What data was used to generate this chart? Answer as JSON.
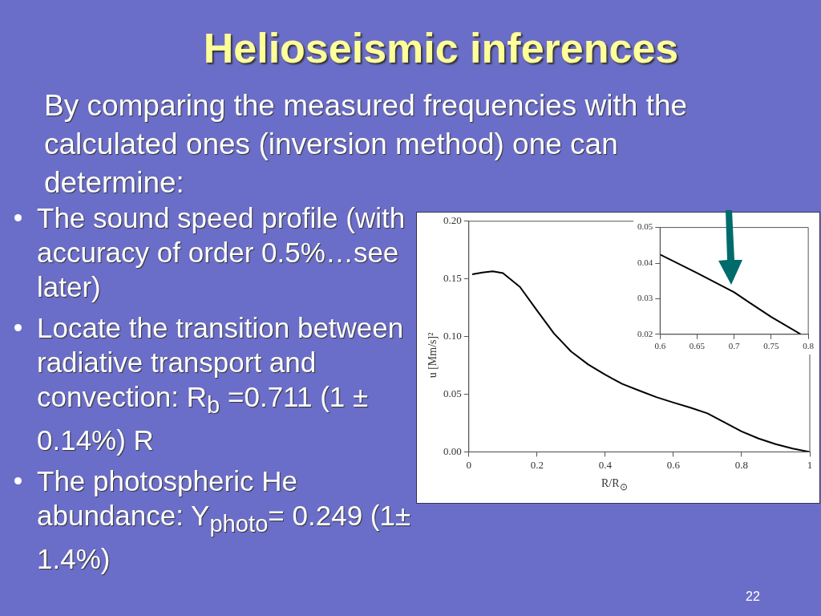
{
  "chart_data": [
    {
      "type": "line",
      "title": "Helioseismic inferences",
      "subtitle": "By comparing the measured frequencies with the calculated ones  (inversion method) one can determine:",
      "annotations": [
        "The sound speed profile (with accuracy of order 0.5%…see later)",
        "Locate the transition between radiative transport and convection: R$_{b}$ =0.711  (1 ± 0.14%) R",
        "The photospheric He abundance: Y$_{photo}$= 0.249 (1± 1.4%)",
        "22"
      ],
      "xlabel": "R/R$_{⊙}$",
      "ylabel": "u [Mm/s]²",
      "x": [
        0.01,
        0.04,
        0.07,
        0.1,
        0.15,
        0.2,
        0.25,
        0.3,
        0.35,
        0.4,
        0.45,
        0.5,
        0.55,
        0.6,
        0.65,
        0.7,
        0.75,
        0.8,
        0.85,
        0.9,
        0.95,
        1.0
      ],
      "series": [
        {
          "color": "#000000",
          "values": [
            0.154,
            0.1555,
            0.1565,
            0.155,
            0.143,
            0.1226,
            0.1026,
            0.087,
            0.0758,
            0.0669,
            0.059,
            0.0531,
            0.0475,
            0.0428,
            0.0384,
            0.0334,
            0.0256,
            0.0178,
            0.0116,
            0.0067,
            0.0029,
            0.0
          ]
        }
      ],
      "xlim": [
        0,
        1
      ],
      "xticks": [
        0,
        0.2,
        0.4,
        0.6,
        0.8,
        1
      ],
      "ylim": [
        0,
        0.2
      ],
      "yticks": [
        {
          "value": 0,
          "label": "0.00"
        },
        {
          "value": 0.05,
          "label": "0.05"
        },
        {
          "value": 0.1,
          "label": "0.10"
        },
        {
          "value": 0.15,
          "label": "0.15"
        },
        {
          "value": 0.2,
          "label": "0.20"
        }
      ]
    },
    {
      "type": "line",
      "x": [
        0.6,
        0.65,
        0.7,
        0.72,
        0.75,
        0.79
      ],
      "series": [
        {
          "color": "#000000",
          "values": [
            0.0424,
            0.0372,
            0.0318,
            0.029,
            0.0249,
            0.02
          ]
        }
      ],
      "xlim": [
        0.6,
        0.8
      ],
      "xticks": [
        0.6,
        0.65,
        0.7,
        0.75,
        0.8
      ],
      "ylim": [
        0.02,
        0.05
      ],
      "yticks": [
        {
          "value": 0.02,
          "label": "0.02"
        },
        {
          "value": 0.03,
          "label": "0.03"
        },
        {
          "value": 0.04,
          "label": "0.04"
        },
        {
          "value": 0.05,
          "label": "0.05"
        }
      ]
    }
  ]
}
